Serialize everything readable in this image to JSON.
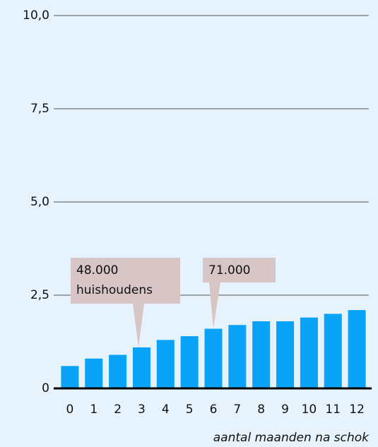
{
  "chart_data": {
    "type": "bar",
    "x_label": "aantal maanden na schok",
    "categories": [
      "0",
      "1",
      "2",
      "3",
      "4",
      "5",
      "6",
      "7",
      "8",
      "9",
      "10",
      "11",
      "12"
    ],
    "values": [
      0.6,
      0.8,
      0.9,
      1.1,
      1.3,
      1.4,
      1.6,
      1.7,
      1.8,
      1.8,
      1.9,
      2.0,
      2.1
    ],
    "color": "#0ba3f7",
    "ylim": [
      0,
      10
    ],
    "yticks": [
      0,
      {
        "value": 2.5,
        "label": "2,5"
      },
      {
        "value": 5,
        "label": "5,0"
      },
      {
        "value": 7.5,
        "label": "7,5"
      },
      {
        "value": 10,
        "label": "10,0"
      }
    ],
    "grid": true,
    "annotations": [
      [
        "48.000",
        "huishoudens"
      ],
      [
        "71.000"
      ]
    ]
  }
}
